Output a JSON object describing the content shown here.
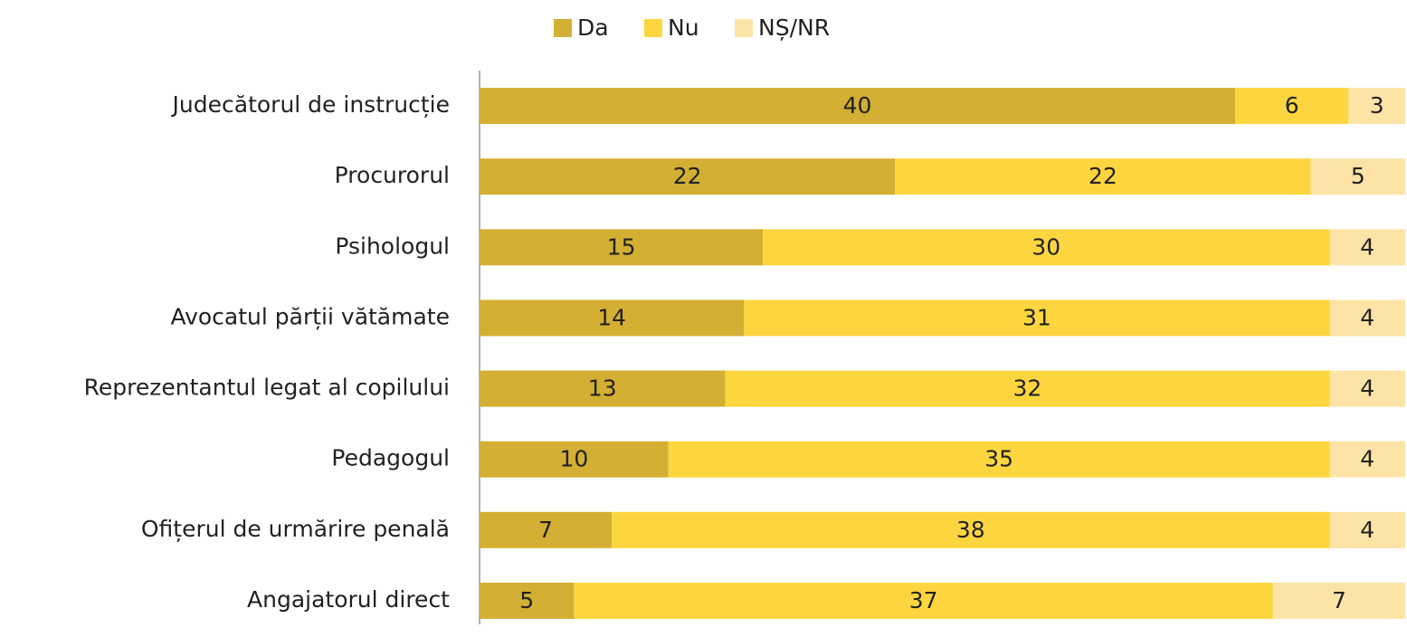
{
  "chart_data": {
    "type": "stacked-bar-horizontal",
    "categories": [
      "Judecătorul de instrucție",
      "Procurorul",
      "Psihologul",
      "Avocatul părții vătămate",
      "Reprezentantul legat al copilului",
      "Pedagogul",
      "Ofițerul de urmărire penală",
      "Angajatorul direct"
    ],
    "series": [
      {
        "name": "Da",
        "color": "#d3af33",
        "values": [
          40,
          22,
          15,
          14,
          13,
          10,
          7,
          5
        ]
      },
      {
        "name": "Nu",
        "color": "#fdd63f",
        "values": [
          6,
          22,
          30,
          31,
          32,
          35,
          38,
          37
        ]
      },
      {
        "name": "NȘ/NR",
        "color": "#fde3a6",
        "values": [
          3,
          5,
          4,
          4,
          4,
          4,
          4,
          7
        ]
      }
    ],
    "xlim": [
      0,
      49
    ],
    "legend": "top"
  }
}
